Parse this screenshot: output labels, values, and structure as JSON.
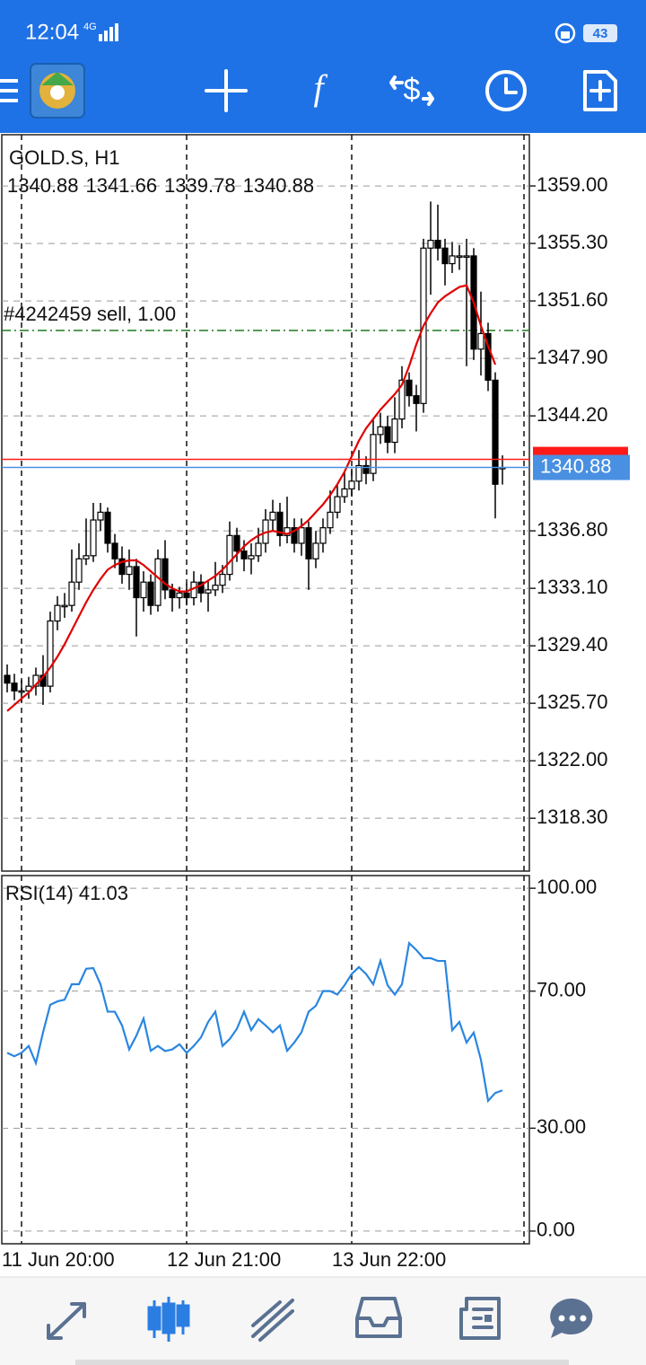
{
  "status_bar": {
    "time": "12:04",
    "network": "4G",
    "battery": "43"
  },
  "chart_data": [
    {
      "type": "candlestick",
      "title": "GOLD.S, H1",
      "categories": [
        null,
        null,
        "11 Jun 20:00",
        null,
        null,
        null,
        null,
        null,
        null,
        null,
        null,
        null,
        null,
        null,
        null,
        null,
        null,
        null,
        null,
        null,
        null,
        null,
        null,
        null,
        null,
        "12 Jun 21:00",
        null,
        null,
        null,
        null,
        null,
        null,
        null,
        null,
        null,
        null,
        null,
        null,
        null,
        null,
        null,
        null,
        null,
        null,
        null,
        null,
        null,
        null,
        "13 Jun 22:00",
        null,
        null,
        null,
        null,
        null,
        null,
        null,
        null,
        null,
        null,
        null,
        null,
        null,
        null,
        null,
        null,
        null,
        null,
        null,
        null,
        null
      ],
      "open": [
        1327.5,
        1327.0,
        1326.5,
        1326.5,
        1326.8,
        1327.5,
        1326.8,
        1331.0,
        1332.0,
        1332.0,
        1333.5,
        1335.0,
        1335.2,
        1337.5,
        1338.0,
        1336.0,
        1335.0,
        1334.0,
        1334.5,
        1332.5,
        1333.5,
        1332.0,
        1335.0,
        1333.0,
        1332.5,
        1332.8,
        1332.5,
        1333.5,
        1332.8,
        1333.0,
        1333.3,
        1334.0,
        1336.5,
        1335.5,
        1335.0,
        1335.2,
        1336.0,
        1337.5,
        1338.0,
        1336.5,
        1337.0,
        1336.0,
        1337.0,
        1335.0,
        1336.0,
        1337.0,
        1338.0,
        1339.0,
        1339.5,
        1340.0,
        1341.0,
        1340.5,
        1343.0,
        1343.5,
        1342.5,
        1344.0,
        1346.5,
        1345.5,
        1345.0,
        1355.0,
        1355.5,
        1355.0,
        1354.0,
        1354.5,
        1354.5,
        1354.5,
        1348.5,
        1349.5,
        1346.5,
        1340.88
      ],
      "high": [
        1328.2,
        1327.6,
        1327.2,
        1327.4,
        1328.0,
        1328.8,
        1331.6,
        1332.6,
        1332.8,
        1335.6,
        1336.0,
        1337.6,
        1338.6,
        1338.6,
        1338.3,
        1336.6,
        1335.8,
        1335.6,
        1335.0,
        1334.2,
        1334.0,
        1335.6,
        1336.2,
        1333.4,
        1333.2,
        1333.4,
        1334.2,
        1334.0,
        1333.6,
        1334.8,
        1334.6,
        1337.4,
        1337.0,
        1336.2,
        1336.0,
        1337.0,
        1338.2,
        1338.8,
        1338.6,
        1339.0,
        1337.6,
        1337.6,
        1337.4,
        1336.8,
        1337.6,
        1339.4,
        1339.8,
        1340.6,
        1340.8,
        1342.0,
        1341.6,
        1344.0,
        1344.4,
        1344.2,
        1345.4,
        1347.4,
        1347.0,
        1346.2,
        1355.6,
        1358.0,
        1357.8,
        1355.6,
        1355.4,
        1355.2,
        1355.6,
        1355.0,
        1352.2,
        1350.2,
        1347.0,
        1341.66
      ],
      "low": [
        1326.4,
        1325.9,
        1325.8,
        1326.0,
        1326.2,
        1325.6,
        1326.4,
        1330.4,
        1331.2,
        1331.6,
        1333.0,
        1334.6,
        1334.8,
        1336.8,
        1335.4,
        1334.4,
        1333.4,
        1333.0,
        1330.0,
        1331.6,
        1331.4,
        1331.6,
        1332.4,
        1331.6,
        1331.8,
        1332.0,
        1332.0,
        1332.2,
        1331.6,
        1332.6,
        1332.8,
        1333.6,
        1334.8,
        1334.2,
        1334.0,
        1334.8,
        1335.4,
        1336.8,
        1335.8,
        1336.0,
        1335.4,
        1335.2,
        1333.0,
        1334.4,
        1335.4,
        1336.6,
        1337.6,
        1338.6,
        1339.0,
        1339.4,
        1339.8,
        1340.0,
        1342.4,
        1341.8,
        1341.8,
        1343.4,
        1344.8,
        1343.2,
        1344.4,
        1352.0,
        1354.2,
        1352.6,
        1353.4,
        1353.6,
        1347.4,
        1347.8,
        1346.8,
        1345.8,
        1337.6,
        1339.78
      ],
      "close": [
        1327.0,
        1326.5,
        1326.5,
        1326.8,
        1327.5,
        1326.8,
        1331.0,
        1332.0,
        1332.0,
        1333.5,
        1335.0,
        1335.2,
        1337.5,
        1338.0,
        1336.0,
        1335.0,
        1334.0,
        1334.5,
        1332.5,
        1333.5,
        1332.0,
        1335.0,
        1333.0,
        1332.5,
        1332.8,
        1332.5,
        1333.5,
        1332.8,
        1333.0,
        1333.3,
        1334.0,
        1336.5,
        1335.5,
        1335.0,
        1335.2,
        1336.0,
        1337.5,
        1338.0,
        1336.5,
        1337.0,
        1336.0,
        1337.0,
        1335.0,
        1336.0,
        1337.0,
        1338.0,
        1339.0,
        1339.5,
        1340.0,
        1341.0,
        1340.5,
        1343.0,
        1343.5,
        1342.5,
        1344.0,
        1346.5,
        1345.5,
        1345.0,
        1355.0,
        1355.5,
        1355.0,
        1354.0,
        1354.5,
        1354.5,
        1354.5,
        1348.5,
        1349.5,
        1346.5,
        1339.8,
        1340.88
      ],
      "ma": {
        "color": "#e00000",
        "values": [
          1325.2,
          1325.6,
          1326.0,
          1326.4,
          1326.9,
          1327.4,
          1328.0,
          1328.7,
          1329.5,
          1330.4,
          1331.3,
          1332.2,
          1333.0,
          1333.7,
          1334.3,
          1334.6,
          1334.8,
          1334.9,
          1334.9,
          1334.6,
          1334.2,
          1333.8,
          1333.4,
          1333.1,
          1332.9,
          1332.9,
          1333.1,
          1333.3,
          1333.6,
          1333.9,
          1334.3,
          1334.8,
          1335.3,
          1335.8,
          1336.2,
          1336.5,
          1336.7,
          1336.8,
          1336.7,
          1336.6,
          1336.8,
          1337.1,
          1337.5,
          1338.0,
          1338.5,
          1339.1,
          1339.8,
          1340.6,
          1341.6,
          1342.6,
          1343.4,
          1344.0,
          1344.6,
          1345.1,
          1345.6,
          1346.2,
          1347.4,
          1348.8,
          1350.0,
          1350.8,
          1351.5,
          1351.9,
          1352.2,
          1352.5,
          1352.6,
          1351.5,
          1350.0,
          1348.7,
          1347.5,
          null
        ]
      },
      "order_line": {
        "label": "#4242459 sell, 1.00",
        "value": 1349.7,
        "color": "#1f7a1f"
      },
      "bid_line": {
        "value": 1341.4,
        "color": "#ff1a1a"
      },
      "ask_line": {
        "value": 1340.88,
        "color": "#4a90e2"
      },
      "ylim": [
        1314.9,
        1362.3
      ],
      "yticks": [
        {
          "value": 1359.0,
          "label": "1359.00"
        },
        {
          "value": 1355.3,
          "label": "1355.30"
        },
        {
          "value": 1351.6,
          "label": "1351.60"
        },
        {
          "value": 1347.9,
          "label": "1347.90"
        },
        {
          "value": 1344.2,
          "label": "1344.20"
        },
        {
          "value": 1336.8,
          "label": "1336.80"
        },
        {
          "value": 1333.1,
          "label": "1333.10"
        },
        {
          "value": 1329.4,
          "label": "1329.40"
        },
        {
          "value": 1325.7,
          "label": "1325.70"
        },
        {
          "value": 1322.0,
          "label": "1322.00"
        },
        {
          "value": 1318.3,
          "label": "1318.30"
        }
      ],
      "grid": true
    },
    {
      "type": "line",
      "title": "RSI(14) 41.03",
      "color": "#2a86e0",
      "values": [
        52,
        51,
        52,
        54,
        49,
        58,
        66,
        67,
        67.5,
        72,
        72,
        76.5,
        76.7,
        72,
        64,
        64,
        60,
        53,
        57,
        62,
        52.6,
        54,
        52.5,
        53,
        54.5,
        52,
        54,
        56.5,
        61,
        64,
        54,
        56,
        59,
        64,
        58.6,
        61.8,
        60,
        58,
        60,
        52.6,
        55,
        58,
        64,
        65.7,
        70,
        70,
        69,
        71.7,
        75,
        77,
        75,
        72,
        78.8,
        71.7,
        69,
        72,
        84,
        82,
        79.6,
        79.6,
        78.8,
        78.8,
        58.6,
        61,
        55,
        57.9,
        50,
        38,
        40.3,
        41.03
      ],
      "ylim": [
        -3.7,
        103.7
      ],
      "yticks": [
        {
          "value": 100,
          "label": "100.00"
        },
        {
          "value": 70,
          "label": "70.00"
        },
        {
          "value": 30,
          "label": "30.00"
        },
        {
          "value": 0,
          "label": "0.00"
        }
      ],
      "grid": true
    }
  ]
}
